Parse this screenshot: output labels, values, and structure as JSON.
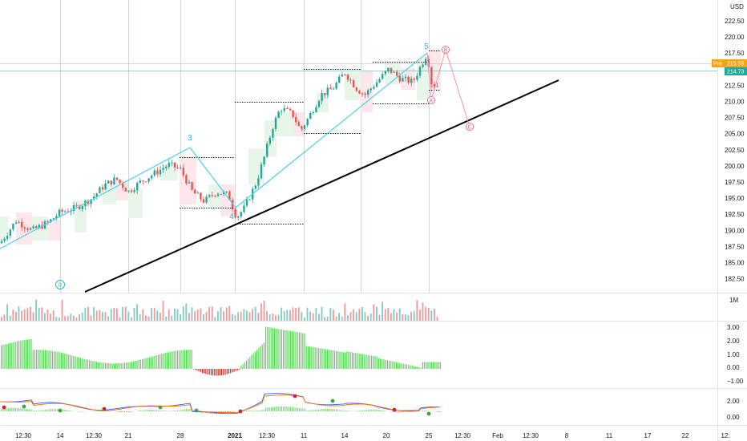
{
  "price_scale": {
    "currency": "USD",
    "ticks": [
      "222.50",
      "220.00",
      "217.50",
      "215.00",
      "212.50",
      "210.00",
      "207.50",
      "205.00",
      "202.50",
      "200.00",
      "197.50",
      "195.00",
      "192.50",
      "190.00",
      "187.50",
      "185.00",
      "182.50"
    ],
    "pre_tag": {
      "label": "Pre",
      "value": "215.59",
      "color": "#f7a21b"
    },
    "last_tag": {
      "value": "214.73",
      "color": "#26a69a"
    }
  },
  "volume_pane": {
    "label": "1M"
  },
  "osc_pane": {
    "ticks": [
      "3.00",
      "2.00",
      "1.00",
      "0.00",
      "−1.00"
    ]
  },
  "macd_pane": {
    "ticks": [
      "2.00",
      "0.00"
    ]
  },
  "time_axis": {
    "labels": [
      {
        "text": "12:30",
        "bold": false
      },
      {
        "text": "14",
        "bold": false
      },
      {
        "text": "12:30",
        "bold": false
      },
      {
        "text": "21",
        "bold": false
      },
      {
        "text": "28",
        "bold": false
      },
      {
        "text": "2021",
        "bold": true
      },
      {
        "text": "12:30",
        "bold": false
      },
      {
        "text": "11",
        "bold": false
      },
      {
        "text": "14",
        "bold": false
      },
      {
        "text": "20",
        "bold": false
      },
      {
        "text": "25",
        "bold": false
      },
      {
        "text": "12:30",
        "bold": false
      },
      {
        "text": "Feb",
        "bold": false
      },
      {
        "text": "12:30",
        "bold": false
      },
      {
        "text": "8",
        "bold": false
      },
      {
        "text": "11",
        "bold": false
      },
      {
        "text": "17",
        "bold": false
      },
      {
        "text": "22",
        "bold": false
      },
      {
        "text": "12:",
        "bold": false
      }
    ]
  },
  "wave_labels": {
    "w0": "0",
    "w3": "3",
    "w4": "4",
    "w5": "5",
    "wA": "A",
    "wB": "B",
    "wC": "C"
  },
  "colors": {
    "up": "#26a69a",
    "down": "#ef5350",
    "wave_line": "#4dd0e1",
    "trend_line": "#000000",
    "osc_up": "#5bd65b",
    "osc_down": "#c0392b",
    "macd_blue": "#2962ff",
    "macd_orange": "#ff6d00"
  }
}
